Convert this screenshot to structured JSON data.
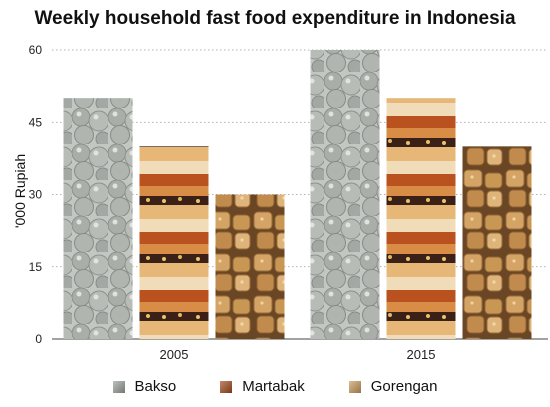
{
  "chart_data": {
    "type": "bar",
    "title": "Weekly household fast food expenditure in Indonesia",
    "ylabel": "'000 Rupiah",
    "xlabel": "",
    "categories": [
      "2005",
      "2015"
    ],
    "series": [
      {
        "name": "Bakso",
        "values": [
          50,
          60
        ],
        "color": "#9aa09c",
        "texture": "meatballs"
      },
      {
        "name": "Martabak",
        "values": [
          40,
          50
        ],
        "color": "#a14a1e",
        "texture": "layered-pancake"
      },
      {
        "name": "Gorengan",
        "values": [
          30,
          40
        ],
        "color": "#c99a5b",
        "texture": "fried-tofu"
      }
    ],
    "ylim": [
      0,
      60
    ],
    "yticks": [
      "0",
      "15",
      "30",
      "45",
      "60"
    ],
    "grid": true,
    "legend_position": "bottom"
  }
}
